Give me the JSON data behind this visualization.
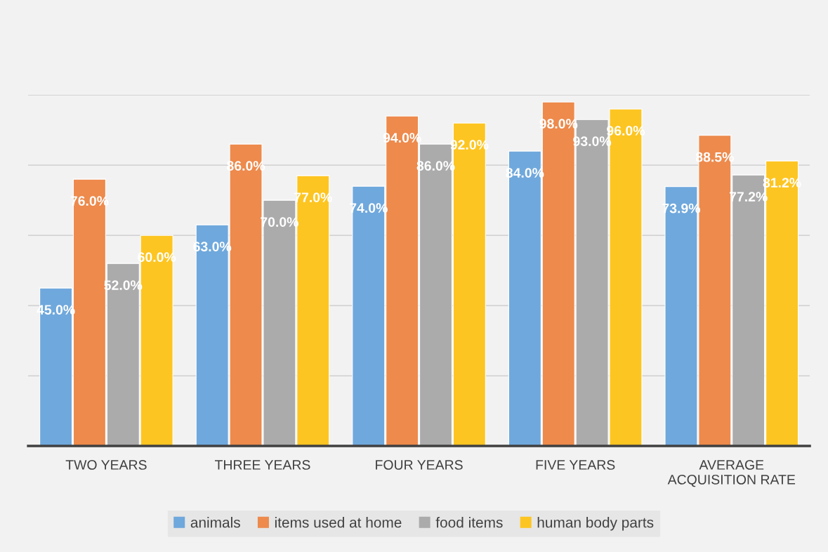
{
  "chart_data": {
    "type": "bar",
    "categories": [
      "TWO YEARS",
      "THREE YEARS",
      "FOUR YEARS",
      "FIVE YEARS",
      "AVERAGE\nACQUISITION RATE"
    ],
    "series": [
      {
        "name": "animals",
        "color": "#6fa8dc",
        "values": [
          45.0,
          63.0,
          74.0,
          84.0,
          73.9
        ],
        "value_labels": [
          "45.0%",
          "63.0%",
          "74.0%",
          "84.0%",
          "73.9%"
        ]
      },
      {
        "name": "items used at home",
        "color": "#ed8a4c",
        "values": [
          76.0,
          86.0,
          94.0,
          98.0,
          88.5
        ],
        "value_labels": [
          "76.0%",
          "86.0%",
          "94.0%",
          "98.0%",
          "88.5%"
        ]
      },
      {
        "name": "food items",
        "color": "#ababab",
        "values": [
          52.0,
          70.0,
          86.0,
          93.0,
          77.2
        ],
        "value_labels": [
          "52.0%",
          "70.0%",
          "86.0%",
          "93.0%",
          "77.2%"
        ]
      },
      {
        "name": "human body parts",
        "color": "#fdc521",
        "values": [
          60.0,
          77.0,
          92.0,
          96.0,
          81.2
        ],
        "value_labels": [
          "60.0%",
          "77.0%",
          "92.0%",
          "96.0%",
          "81.2%"
        ]
      }
    ],
    "ylim": [
      0,
      100
    ],
    "yticks": [
      {
        "value": 0,
        "label": null
      },
      {
        "value": 20,
        "label": null
      },
      {
        "value": 40,
        "label": null
      },
      {
        "value": 60,
        "label": null
      },
      {
        "value": 80,
        "label": null
      },
      {
        "value": 100,
        "label": null
      }
    ],
    "tick_labels": "x",
    "grid": "y",
    "legend": "bottom"
  }
}
